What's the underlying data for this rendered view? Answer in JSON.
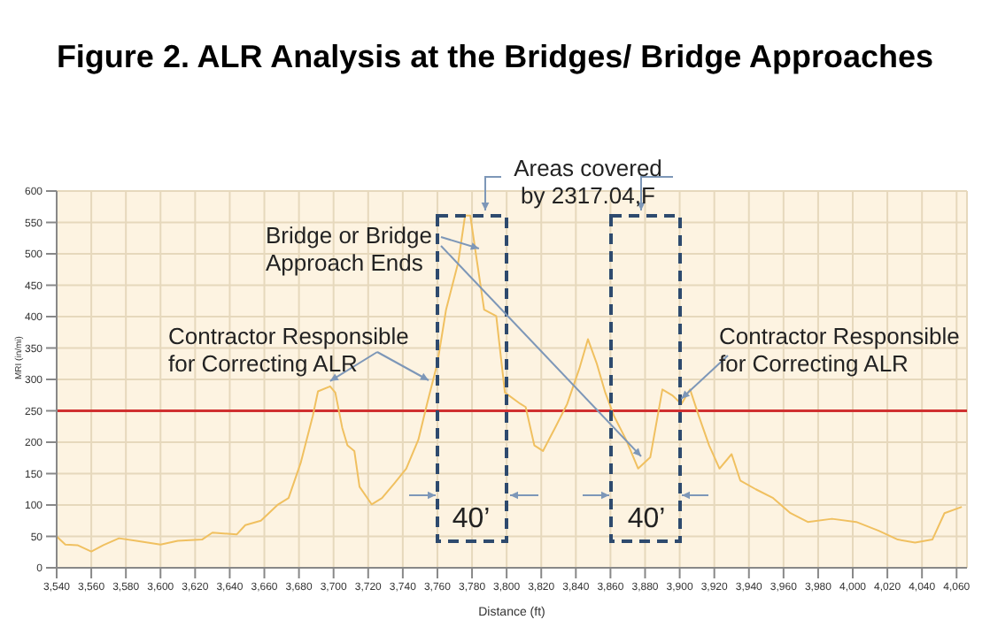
{
  "chart_data": {
    "type": "line",
    "title": "Figure 2. ALR Analysis at the Bridges/ Bridge Approaches",
    "xlabel": "Distance (ft)",
    "ylabel": "MRI (in/mi)",
    "x": [
      3540,
      3545,
      3552,
      3560,
      3567,
      3576,
      3586,
      3600,
      3610,
      3624,
      3630,
      3644,
      3649,
      3658,
      3668,
      3674,
      3681,
      3688,
      3691,
      3698,
      3701,
      3705,
      3708,
      3712,
      3715,
      3722,
      3728,
      3735,
      3742,
      3749,
      3754,
      3760,
      3765,
      3772,
      3776,
      3779,
      3782,
      3787,
      3794,
      3799,
      3808,
      3811,
      3816,
      3821,
      3828,
      3835,
      3842,
      3847,
      3852,
      3857,
      3862,
      3869,
      3876,
      3883,
      3890,
      3896,
      3901,
      3906,
      3911,
      3917,
      3923,
      3930,
      3935,
      3944,
      3954,
      3964,
      3974,
      3988,
      4002,
      4015,
      4026,
      4036,
      4046,
      4053,
      4063
    ],
    "series": [
      {
        "color": "#f0c060",
        "values": [
          50,
          37,
          36,
          26,
          36,
          47,
          43,
          37,
          43,
          45,
          56,
          53,
          68,
          75,
          101,
          111,
          167,
          242,
          281,
          289,
          279,
          223,
          195,
          186,
          129,
          101,
          111,
          134,
          158,
          204,
          261,
          326,
          411,
          486,
          561,
          561,
          504,
          411,
          401,
          279,
          261,
          256,
          195,
          186,
          223,
          261,
          317,
          364,
          326,
          279,
          242,
          204,
          158,
          176,
          284,
          274,
          261,
          284,
          242,
          195,
          158,
          181,
          139,
          125,
          111,
          87,
          73,
          78,
          73,
          59,
          45,
          40,
          45,
          87,
          97
        ]
      }
    ],
    "xlim": [
      3540,
      4066
    ],
    "ylim": [
      0,
      600
    ],
    "xticks": [
      {
        "value": 3540,
        "label": "3,540"
      },
      {
        "value": 3560,
        "label": "3,560"
      },
      {
        "value": 3580,
        "label": "3,580"
      },
      {
        "value": 3600,
        "label": "3,600"
      },
      {
        "value": 3620,
        "label": "3,620"
      },
      {
        "value": 3640,
        "label": "3,640"
      },
      {
        "value": 3660,
        "label": "3,660"
      },
      {
        "value": 3680,
        "label": "3,680"
      },
      {
        "value": 3700,
        "label": "3,700"
      },
      {
        "value": 3720,
        "label": "3,720"
      },
      {
        "value": 3740,
        "label": "3,740"
      },
      {
        "value": 3760,
        "label": "3,760"
      },
      {
        "value": 3780,
        "label": "3,780"
      },
      {
        "value": 3800,
        "label": "3,800"
      },
      {
        "value": 3820,
        "label": "3,820"
      },
      {
        "value": 3840,
        "label": "3,840"
      },
      {
        "value": 3860,
        "label": "3,860"
      },
      {
        "value": 3880,
        "label": "3,880"
      },
      {
        "value": 3900,
        "label": "3,900"
      },
      {
        "value": 3920,
        "label": "3,920"
      },
      {
        "value": 3940,
        "label": "3,940"
      },
      {
        "value": 3960,
        "label": "3,960"
      },
      {
        "value": 3980,
        "label": "3,980"
      },
      {
        "value": 4000,
        "label": "4,000"
      },
      {
        "value": 4020,
        "label": "4,020"
      },
      {
        "value": 4040,
        "label": "4,040"
      },
      {
        "value": 4060,
        "label": "4,060"
      }
    ],
    "yticks": [
      0,
      50,
      100,
      150,
      200,
      250,
      300,
      350,
      400,
      450,
      500,
      550,
      600
    ],
    "grid": true,
    "marker": "none",
    "line_style": "solid",
    "ref_lines": [
      {
        "axis": "y",
        "value": 250,
        "color": "#d03030"
      }
    ],
    "annotations": [
      "Areas covered\nby 2317.04,F",
      {
        "text": "Bridge or Bridge\nApproach Ends",
        "x": 3784,
        "y": 500
      },
      {
        "text": "Contractor Responsible\nfor Correcting ALR",
        "x": 3698,
        "y": 289
      },
      {
        "text": "Contractor Responsible\nfor Correcting ALR",
        "x": 3901,
        "y": 261
      },
      "40’",
      "40’"
    ]
  }
}
